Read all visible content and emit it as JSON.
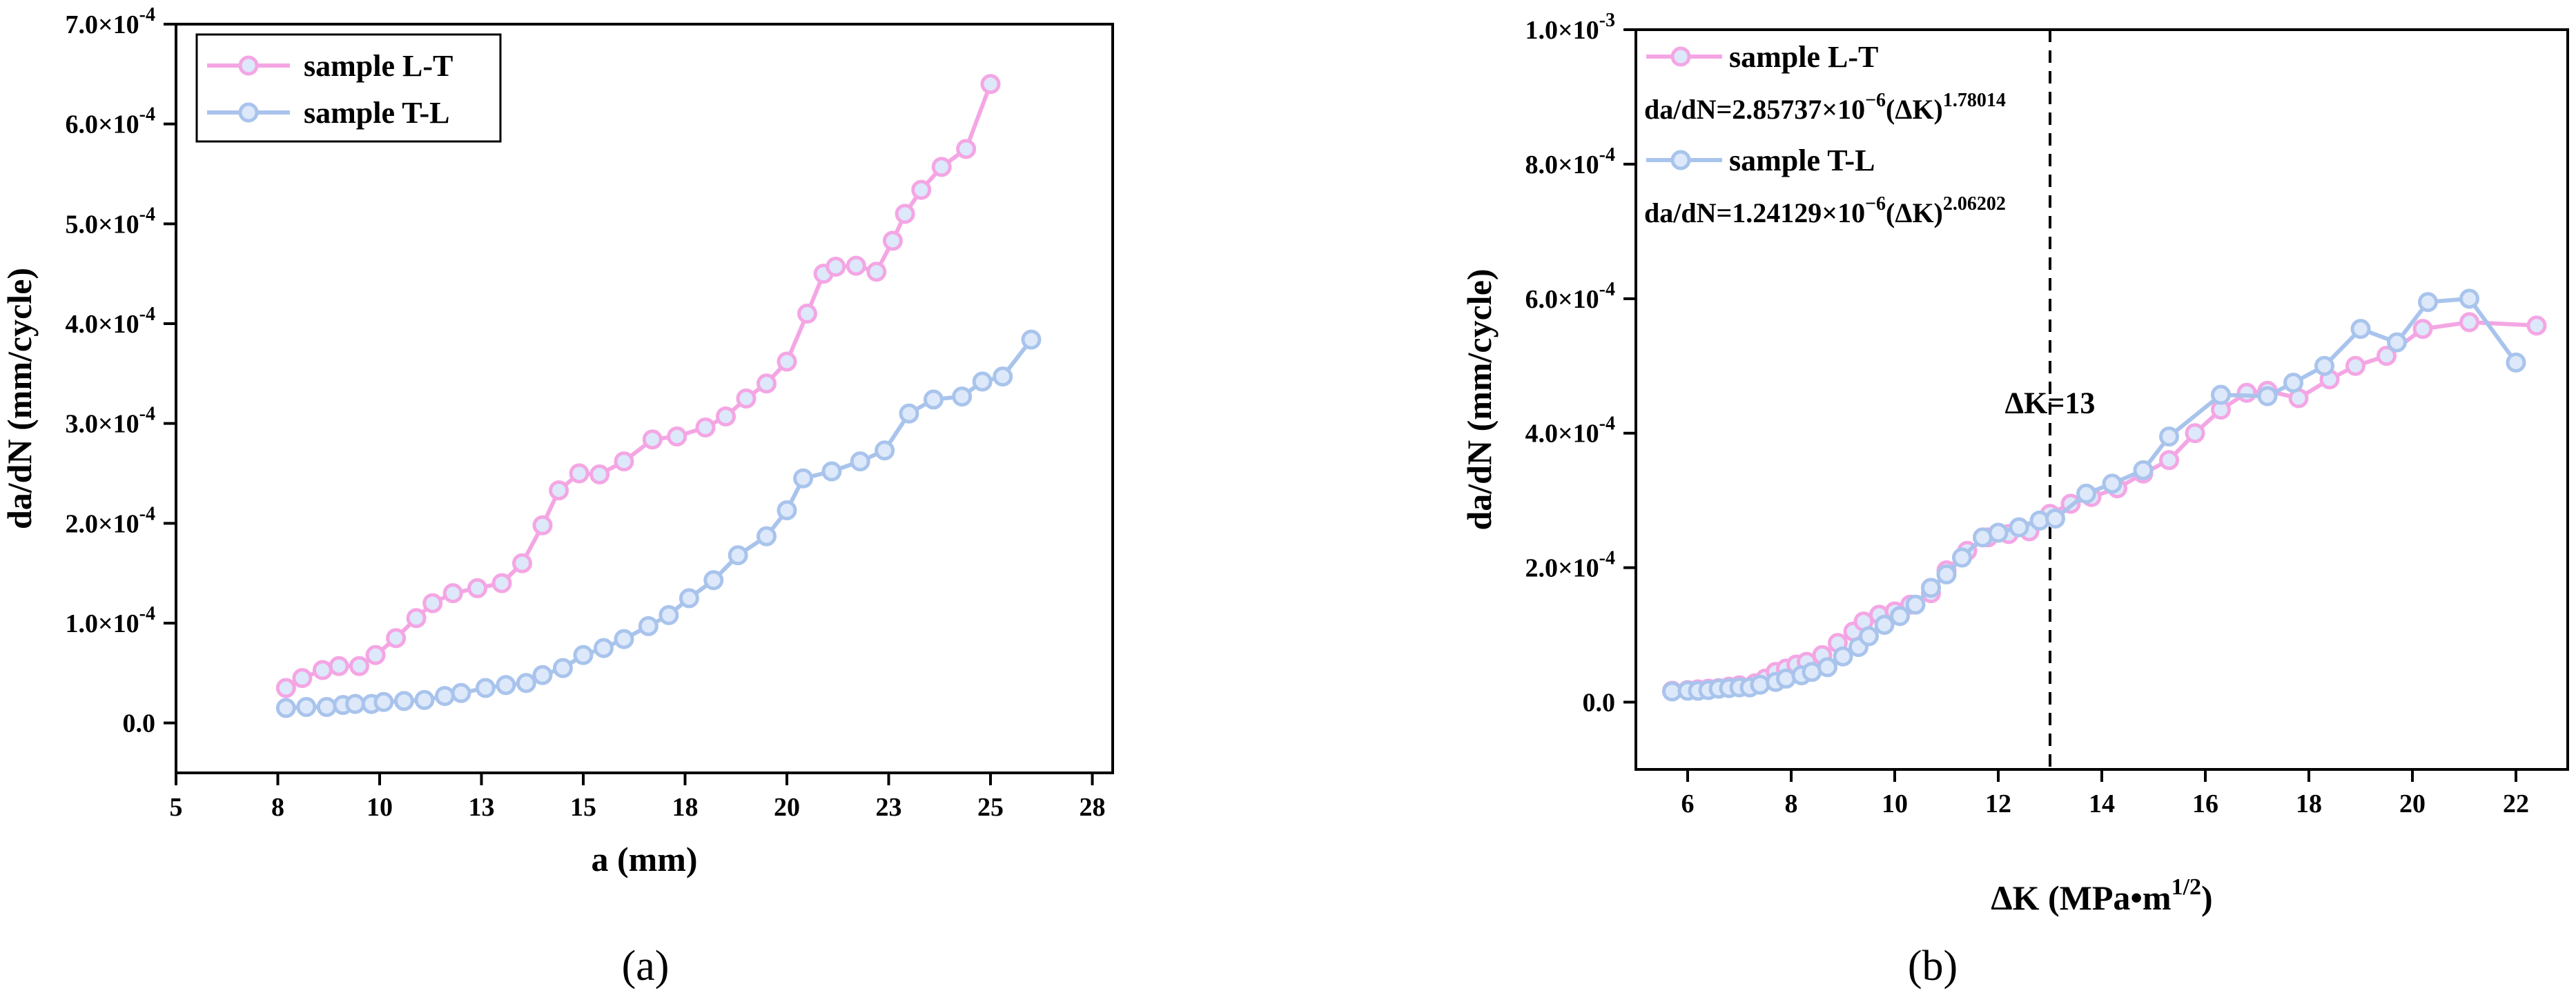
{
  "chart_data": [
    {
      "panel_label": "(a)",
      "type": "line",
      "xlabel": "a (mm)",
      "ylabel": "da/dN (mm/cycle)",
      "xlim": [
        5,
        28
      ],
      "ylim": [
        -0.5,
        7.0
      ],
      "x_ticks": [
        "5",
        "8",
        "10",
        "13",
        "15",
        "18",
        "20",
        "23",
        "25",
        "28"
      ],
      "x_tick_values": [
        5,
        7.5,
        10,
        12.5,
        15,
        17.5,
        20,
        22.5,
        25,
        27.5
      ],
      "y_ticks": [
        {
          "value": 0,
          "label": "0.0"
        },
        {
          "value": 1,
          "mant": "1.0×10",
          "exp": "-4"
        },
        {
          "value": 2,
          "mant": "2.0×10",
          "exp": "-4"
        },
        {
          "value": 3,
          "mant": "3.0×10",
          "exp": "-4"
        },
        {
          "value": 4,
          "mant": "4.0×10",
          "exp": "-4"
        },
        {
          "value": 5,
          "mant": "5.0×10",
          "exp": "-4"
        },
        {
          "value": 6,
          "mant": "6.0×10",
          "exp": "-4"
        },
        {
          "value": 7,
          "mant": "7.0×10",
          "exp": "-4"
        }
      ],
      "y_unit_note": "y values in units of 1e-4 mm/cycle",
      "legend": {
        "placement": "top-left"
      },
      "series": [
        {
          "name": "sample L-T",
          "color": "#f4a6e4",
          "x": [
            7.7,
            8.1,
            8.6,
            9.0,
            9.5,
            9.9,
            10.4,
            10.9,
            11.3,
            11.8,
            12.4,
            13.0,
            13.5,
            14.0,
            14.4,
            14.9,
            15.4,
            16.0,
            16.7,
            17.3,
            18.0,
            18.5,
            19.0,
            19.5,
            20.0,
            20.5,
            20.9,
            21.2,
            21.7,
            22.2,
            22.6,
            22.9,
            23.3,
            23.8,
            24.4,
            25.0
          ],
          "y": [
            0.35,
            0.45,
            0.53,
            0.57,
            0.57,
            0.68,
            0.85,
            1.05,
            1.2,
            1.3,
            1.35,
            1.4,
            1.6,
            1.98,
            2.33,
            2.5,
            2.49,
            2.62,
            2.84,
            2.87,
            2.96,
            3.07,
            3.25,
            3.4,
            3.62,
            4.1,
            4.5,
            4.57,
            4.58,
            4.52,
            4.83,
            5.1,
            5.34,
            5.57,
            5.75,
            6.4
          ]
        },
        {
          "name": "sample T-L",
          "color": "#a9c4ec",
          "x": [
            7.7,
            8.2,
            8.7,
            9.1,
            9.4,
            9.8,
            10.1,
            10.6,
            11.1,
            11.6,
            12.0,
            12.6,
            13.1,
            13.6,
            14.0,
            14.5,
            15.0,
            15.5,
            16.0,
            16.6,
            17.1,
            17.6,
            18.2,
            18.8,
            19.5,
            20.0,
            20.4,
            21.1,
            21.8,
            22.4,
            23.0,
            23.6,
            24.3,
            24.8,
            25.3,
            26.0
          ],
          "y": [
            0.15,
            0.16,
            0.16,
            0.18,
            0.19,
            0.19,
            0.21,
            0.22,
            0.23,
            0.27,
            0.3,
            0.35,
            0.38,
            0.4,
            0.48,
            0.55,
            0.68,
            0.75,
            0.84,
            0.97,
            1.08,
            1.25,
            1.43,
            1.68,
            1.87,
            2.13,
            2.45,
            2.52,
            2.62,
            2.73,
            3.1,
            3.24,
            3.27,
            3.42,
            3.47,
            3.84
          ]
        }
      ]
    },
    {
      "panel_label": "(b)",
      "type": "line",
      "xlabel_main": "ΔK (MPa•m",
      "xlabel_sup": "1/2",
      "xlabel_close": ")",
      "ylabel": "da/dN (mm/cycle)",
      "xlim": [
        5,
        23
      ],
      "ylim": [
        -1.0,
        10.0
      ],
      "x_ticks": [
        "6",
        "8",
        "10",
        "12",
        "14",
        "16",
        "18",
        "20",
        "22"
      ],
      "x_tick_values": [
        6,
        8,
        10,
        12,
        14,
        16,
        18,
        20,
        22
      ],
      "y_ticks": [
        {
          "value": 0,
          "label": "0.0"
        },
        {
          "value": 2,
          "mant": "2.0×10",
          "exp": "-4"
        },
        {
          "value": 4,
          "mant": "4.0×10",
          "exp": "-4"
        },
        {
          "value": 6,
          "mant": "6.0×10",
          "exp": "-4"
        },
        {
          "value": 8,
          "mant": "8.0×10",
          "exp": "-4"
        },
        {
          "value": 10,
          "mant": "1.0×10",
          "exp": "-3"
        }
      ],
      "vline": {
        "x": 13,
        "label": "ΔK=13"
      },
      "legend": {
        "placement": "top-left"
      },
      "series": [
        {
          "name": "sample L-T",
          "equation_main": "da/dN=2.85737×10",
          "equation_exp": "−6",
          "equation_mid": "(ΔK)",
          "equation_pow": "1.78014",
          "color": "#f4a6e4",
          "x": [
            5.7,
            6.0,
            6.2,
            6.4,
            6.6,
            6.8,
            7.0,
            7.3,
            7.5,
            7.7,
            7.9,
            8.1,
            8.3,
            8.6,
            8.9,
            9.2,
            9.4,
            9.7,
            10.0,
            10.3,
            10.7,
            11.0,
            11.4,
            11.8,
            12.2,
            12.6,
            13.0,
            13.4,
            13.8,
            14.3,
            14.8,
            15.3,
            15.8,
            16.3,
            16.8,
            17.2,
            17.8,
            18.4,
            18.9,
            19.5,
            20.2,
            21.1,
            22.4
          ],
          "y": [
            0.17,
            0.18,
            0.19,
            0.2,
            0.21,
            0.23,
            0.25,
            0.28,
            0.35,
            0.45,
            0.5,
            0.56,
            0.6,
            0.7,
            0.88,
            1.05,
            1.2,
            1.3,
            1.35,
            1.45,
            1.62,
            1.96,
            2.25,
            2.45,
            2.5,
            2.54,
            2.8,
            2.95,
            3.05,
            3.18,
            3.4,
            3.6,
            4.0,
            4.35,
            4.6,
            4.63,
            4.52,
            4.8,
            5.0,
            5.15,
            5.55,
            5.65,
            5.6
          ]
        },
        {
          "name": "sample T-L",
          "equation_main": "da/dN=1.24129×10",
          "equation_exp": "−6",
          "equation_mid": "(ΔK)",
          "equation_pow": "2.06202",
          "color": "#a9c4ec",
          "x": [
            5.7,
            6.0,
            6.2,
            6.4,
            6.6,
            6.8,
            7.0,
            7.2,
            7.4,
            7.7,
            7.9,
            8.2,
            8.4,
            8.7,
            9.0,
            9.3,
            9.5,
            9.8,
            10.1,
            10.4,
            10.7,
            11.0,
            11.3,
            11.7,
            12.0,
            12.4,
            12.8,
            13.1,
            13.7,
            14.2,
            14.8,
            15.3,
            16.3,
            17.2,
            17.7,
            18.3,
            19.0,
            19.7,
            20.3,
            21.1,
            22.0
          ],
          "y": [
            0.16,
            0.17,
            0.17,
            0.18,
            0.2,
            0.21,
            0.22,
            0.22,
            0.26,
            0.3,
            0.35,
            0.4,
            0.45,
            0.52,
            0.68,
            0.82,
            0.98,
            1.15,
            1.28,
            1.45,
            1.7,
            1.9,
            2.15,
            2.45,
            2.52,
            2.6,
            2.7,
            2.73,
            3.1,
            3.25,
            3.45,
            3.95,
            4.57,
            4.55,
            4.75,
            5.0,
            5.55,
            5.35,
            5.95,
            6.0,
            5.05
          ]
        }
      ]
    }
  ]
}
